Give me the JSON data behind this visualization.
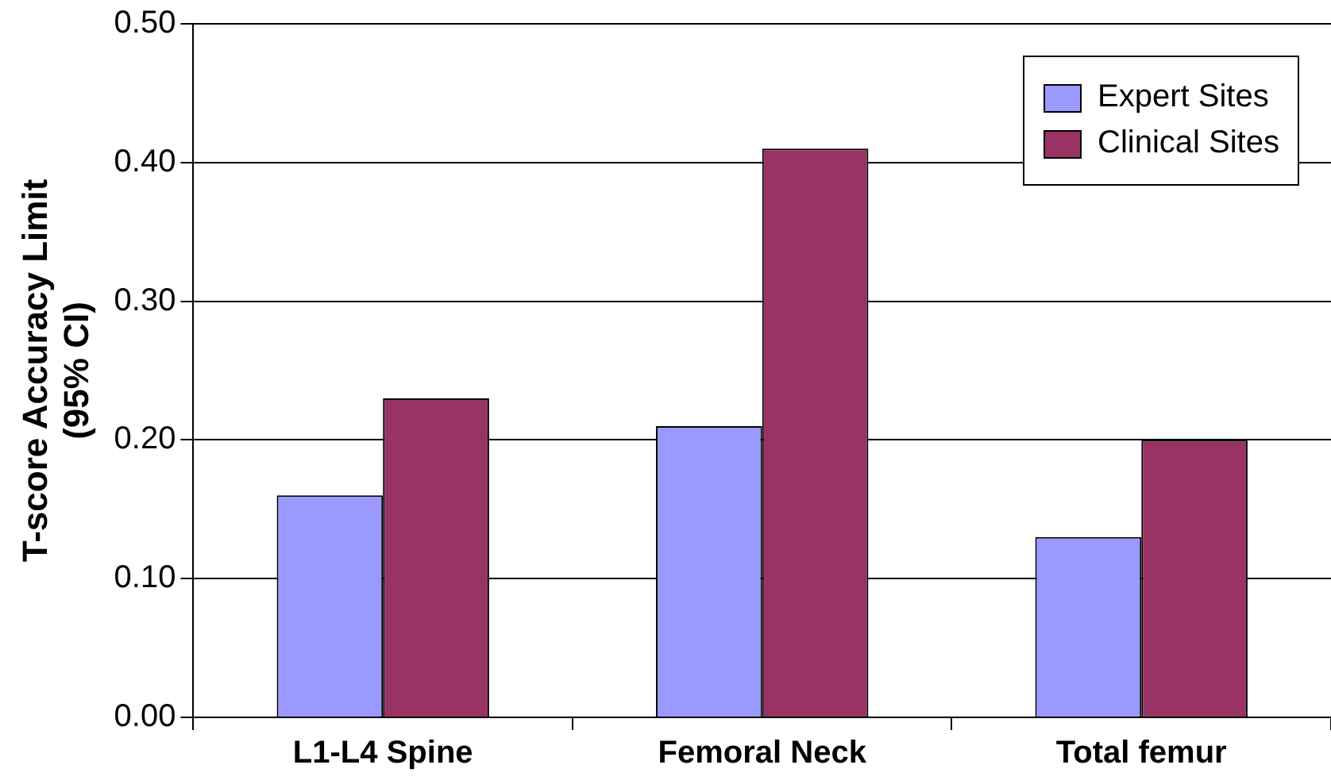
{
  "chart_data": {
    "type": "bar",
    "ylabel": "T-score Accuracy Limit\n(95% CI)",
    "categories": [
      "L1-L4 Spine",
      "Femoral Neck",
      "Total femur"
    ],
    "series": [
      {
        "name": "Expert Sites",
        "color": "#9999ff",
        "values": [
          0.16,
          0.21,
          0.13
        ]
      },
      {
        "name": "Clinical Sites",
        "color": "#993366",
        "values": [
          0.23,
          0.41,
          0.2
        ]
      }
    ],
    "ylim": [
      0,
      0.5
    ],
    "yticks": [
      {
        "value": 0,
        "label": "0.00"
      },
      {
        "value": 0.1,
        "label": "0.10"
      },
      {
        "value": 0.2,
        "label": "0.20"
      },
      {
        "value": 0.3,
        "label": "0.30"
      },
      {
        "value": 0.4,
        "label": "0.40"
      },
      {
        "value": 0.5,
        "label": "0.50"
      }
    ],
    "grid": "y",
    "legend": "top right"
  }
}
